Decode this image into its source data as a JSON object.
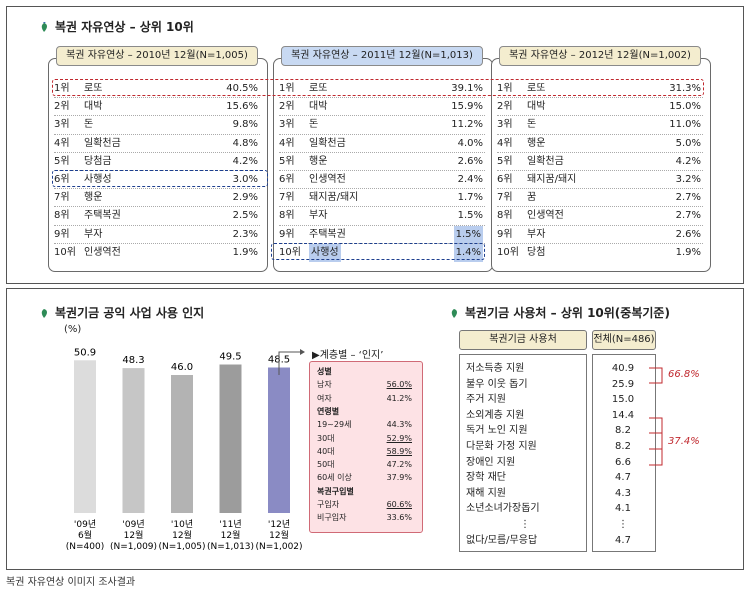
{
  "top": {
    "title": "복권 자유연상 – 상위 10위",
    "columns": [
      {
        "header": "복권 자유연상 – 2010년 12월(N=1,005)",
        "rows": [
          [
            "1위",
            "로또",
            "40.5%"
          ],
          [
            "2위",
            "대박",
            "15.6%"
          ],
          [
            "3위",
            "돈",
            "9.8%"
          ],
          [
            "4위",
            "일확천금",
            "4.8%"
          ],
          [
            "5위",
            "당첨금",
            "4.2%"
          ],
          [
            "6위",
            "사행성",
            "3.0%"
          ],
          [
            "7위",
            "행운",
            "2.9%"
          ],
          [
            "8위",
            "주택복권",
            "2.5%"
          ],
          [
            "9위",
            "부자",
            "2.3%"
          ],
          [
            "10위",
            "인생역전",
            "1.9%"
          ]
        ]
      },
      {
        "header": "복권 자유연상 – 2011년 12월(N=1,013)",
        "rows": [
          [
            "1위",
            "로또",
            "39.1%"
          ],
          [
            "2위",
            "대박",
            "15.9%"
          ],
          [
            "3위",
            "돈",
            "11.2%"
          ],
          [
            "4위",
            "일확천금",
            "4.0%"
          ],
          [
            "5위",
            "행운",
            "2.6%"
          ],
          [
            "6위",
            "인생역전",
            "2.4%"
          ],
          [
            "7위",
            "돼지꿈/돼지",
            "1.7%"
          ],
          [
            "8위",
            "부자",
            "1.5%"
          ],
          [
            "9위",
            "주택복권",
            "1.5%"
          ],
          [
            "10위",
            "사행성",
            "1.4%"
          ]
        ]
      },
      {
        "header": "복권 자유연상 – 2012년 12월(N=1,002)",
        "rows": [
          [
            "1위",
            "로또",
            "31.3%"
          ],
          [
            "2위",
            "대박",
            "15.0%"
          ],
          [
            "3위",
            "돈",
            "11.0%"
          ],
          [
            "4위",
            "행운",
            "5.0%"
          ],
          [
            "5위",
            "일확천금",
            "4.2%"
          ],
          [
            "6위",
            "돼지꿈/돼지",
            "3.2%"
          ],
          [
            "7위",
            "꿈",
            "2.7%"
          ],
          [
            "8위",
            "인생역전",
            "2.7%"
          ],
          [
            "9위",
            "부자",
            "2.6%"
          ],
          [
            "10위",
            "당첨",
            "1.9%"
          ]
        ]
      }
    ],
    "colors": {
      "red_dash": "#c0282e",
      "blue_dash": "#1d3f8f",
      "header_fill": "#f4edcf",
      "highlight": "#b9cdee"
    }
  },
  "left": {
    "title": "복권기금 공익 사업 사용 인지",
    "unit": "(%)",
    "legend_title": "▶계층별 – ‘인지’",
    "legend": [
      {
        "label": "성별",
        "value": "",
        "head": true
      },
      {
        "label": "남자",
        "value": "56.0%",
        "u": true
      },
      {
        "label": "여자",
        "value": "41.2%"
      },
      {
        "label": "연령별",
        "value": "",
        "head": true
      },
      {
        "label": "19~29세",
        "value": "44.3%"
      },
      {
        "label": "30대",
        "value": "52.9%",
        "u": true
      },
      {
        "label": "40대",
        "value": "58.9%",
        "u": true
      },
      {
        "label": "50대",
        "value": "47.2%"
      },
      {
        "label": "60세 이상",
        "value": "37.9%"
      },
      {
        "label": "복권구입별",
        "value": "",
        "head": true
      },
      {
        "label": "구입자",
        "value": "60.6%",
        "u": true
      },
      {
        "label": "비구입자",
        "value": "33.6%"
      }
    ]
  },
  "chart_data": {
    "type": "bar",
    "categories": [
      "'09년 6월 (N=400)",
      "'09년 12월 (N=1,009)",
      "'10년 12월 (N=1,005)",
      "'11년 12월 (N=1,013)",
      "'12년 12월 (N=1,002)"
    ],
    "category_lines": [
      [
        "'09년",
        "6월",
        "(N=400)"
      ],
      [
        "'09년",
        "12월",
        "(N=1,009)"
      ],
      [
        "'10년",
        "12월",
        "(N=1,005)"
      ],
      [
        "'11년",
        "12월",
        "(N=1,013)"
      ],
      [
        "'12년",
        "12월",
        "(N=1,002)"
      ]
    ],
    "values": [
      50.9,
      48.3,
      46.0,
      49.5,
      48.5
    ],
    "labels": [
      "50.9",
      "48.3",
      "46.0",
      "49.5",
      "48.5"
    ],
    "colors": [
      "#dcdcdc",
      "#c6c6c6",
      "#b3b3b3",
      "#9c9c9c",
      "#8a8bc4"
    ],
    "title": "복권기금 공익 사업 사용 인지",
    "ylabel": "(%)",
    "ylim": [
      0,
      60
    ]
  },
  "right": {
    "title": "복권기금 사용처 – 상위 10위(중복기준)",
    "head_label": "복권기금 사용처",
    "head_total": "전체(N=486)",
    "rows": [
      [
        "저소득층 지원",
        "40.9"
      ],
      [
        "불우 이웃 돕기",
        "25.9"
      ],
      [
        "주거 지원",
        "15.0"
      ],
      [
        "소외계층 지원",
        "14.4"
      ],
      [
        "독거 노인 지원",
        "8.2"
      ],
      [
        "다문화 가정 지원",
        "8.2"
      ],
      [
        "장애인 지원",
        "6.6"
      ],
      [
        "장학 재단",
        "4.7"
      ],
      [
        "재해 지원",
        "4.3"
      ],
      [
        "소년소녀가장돕기",
        "4.1"
      ],
      [
        "⋮",
        "⋮"
      ],
      [
        "없다/모름/무응답",
        "4.7"
      ]
    ],
    "bracket1": "66.8%",
    "bracket2": "37.4%"
  },
  "caption": "복권 자유연상 이미지 조사결과"
}
